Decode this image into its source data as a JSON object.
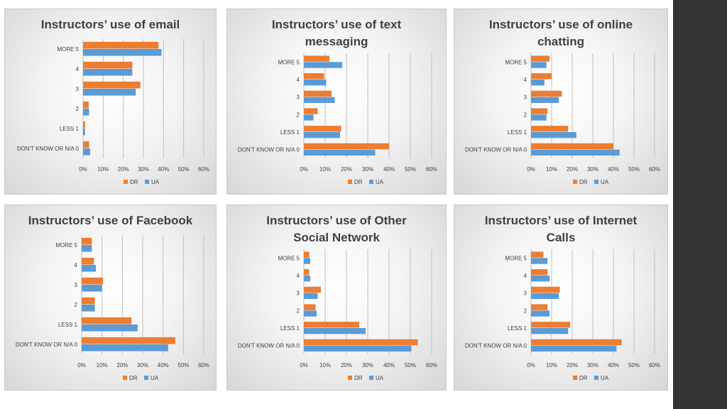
{
  "colors": {
    "DR": "#ED7D31",
    "UA": "#5B9BD5",
    "grid": "#bfbfbf",
    "text": "#404040",
    "title": "#404040",
    "sidebar": "#333333"
  },
  "chart_data": [
    {
      "type": "bar",
      "orientation": "horizontal",
      "title": [
        "Instructors’ use of email"
      ],
      "categories": [
        "MORE 5",
        "4",
        "3",
        "2",
        "LESS 1",
        "DON'T KNOW OR N/A 0"
      ],
      "series": [
        {
          "name": "DR",
          "values": [
            37.5,
            24.5,
            28.5,
            2.8,
            1.0,
            3.0
          ]
        },
        {
          "name": "UA",
          "values": [
            39.0,
            24.5,
            26.2,
            3.0,
            1.0,
            3.5
          ]
        }
      ],
      "xticks": [
        "0%",
        "10%",
        "20%",
        "30%",
        "40%",
        "50%",
        "60%"
      ],
      "xlim": [
        0,
        60
      ],
      "grid": true,
      "legend": "bottom"
    },
    {
      "type": "bar",
      "orientation": "horizontal",
      "title": [
        "Instructors’ use of text",
        "messaging"
      ],
      "categories": [
        "MORE 5",
        "4",
        "3",
        "2",
        "LESS 1",
        "DON'T KNOW OR N/A 0"
      ],
      "series": [
        {
          "name": "DR",
          "values": [
            12.0,
            9.5,
            13.0,
            6.5,
            17.5,
            40.0
          ]
        },
        {
          "name": "UA",
          "values": [
            18.0,
            10.5,
            14.5,
            4.5,
            17.0,
            33.5
          ]
        }
      ],
      "xticks": [
        "0%",
        "10%",
        "20%",
        "30%",
        "40%",
        "50%",
        "60%"
      ],
      "xlim": [
        0,
        60
      ],
      "grid": true,
      "legend": "bottom"
    },
    {
      "type": "bar",
      "orientation": "horizontal",
      "title": [
        "Instructors’ use of online",
        "chatting"
      ],
      "categories": [
        "MORE 5",
        "4",
        "3",
        "2",
        "LESS 1",
        "DON'T KNOW OR N/A 0"
      ],
      "series": [
        {
          "name": "DR",
          "values": [
            9.0,
            10.0,
            15.0,
            8.0,
            18.0,
            40.0
          ]
        },
        {
          "name": "UA",
          "values": [
            7.5,
            6.5,
            13.5,
            7.5,
            22.0,
            43.0
          ]
        }
      ],
      "xticks": [
        "0%",
        "10%",
        "20%",
        "30%",
        "40%",
        "50%",
        "60%"
      ],
      "xlim": [
        0,
        60
      ],
      "grid": true,
      "legend": "bottom"
    },
    {
      "type": "bar",
      "orientation": "horizontal",
      "title": [
        "Instructors’ use of Facebook"
      ],
      "categories": [
        "MORE 5",
        "4",
        "3",
        "2",
        "LESS 1",
        "DON'T KNOW OR N/A 0"
      ],
      "series": [
        {
          "name": "DR",
          "values": [
            5.0,
            6.0,
            10.5,
            6.5,
            24.5,
            46.0
          ]
        },
        {
          "name": "UA",
          "values": [
            5.0,
            7.0,
            10.0,
            6.5,
            27.5,
            42.5
          ]
        }
      ],
      "xticks": [
        "0%",
        "10%",
        "20%",
        "30%",
        "40%",
        "50%",
        "60%"
      ],
      "xlim": [
        0,
        60
      ],
      "grid": true,
      "legend": "bottom"
    },
    {
      "type": "bar",
      "orientation": "horizontal",
      "title": [
        "Instructors’ use of Other",
        "Social Network"
      ],
      "categories": [
        "MORE 5",
        "4",
        "3",
        "2",
        "LESS 1",
        "DON'T KNOW OR N/A 0"
      ],
      "series": [
        {
          "name": "DR",
          "values": [
            2.5,
            2.5,
            8.0,
            5.5,
            26.0,
            53.5
          ]
        },
        {
          "name": "UA",
          "values": [
            3.0,
            3.0,
            6.5,
            6.0,
            29.0,
            50.5
          ]
        }
      ],
      "xticks": [
        "0%",
        "10%",
        "20%",
        "30%",
        "40%",
        "50%",
        "60%"
      ],
      "xlim": [
        0,
        60
      ],
      "grid": true,
      "legend": "bottom"
    },
    {
      "type": "bar",
      "orientation": "horizontal",
      "title": [
        "Instructors’ use of Internet",
        "Calls"
      ],
      "categories": [
        "MORE 5",
        "4",
        "3",
        "2",
        "LESS 1",
        "DON'T KNOW OR N/A 0"
      ],
      "series": [
        {
          "name": "DR",
          "values": [
            6.0,
            8.0,
            14.0,
            8.0,
            19.0,
            44.0
          ]
        },
        {
          "name": "UA",
          "values": [
            8.0,
            9.0,
            13.5,
            9.0,
            18.0,
            41.5
          ]
        }
      ],
      "xticks": [
        "0%",
        "10%",
        "20%",
        "30%",
        "40%",
        "50%",
        "60%"
      ],
      "xlim": [
        0,
        60
      ],
      "grid": true,
      "legend": "bottom"
    }
  ]
}
